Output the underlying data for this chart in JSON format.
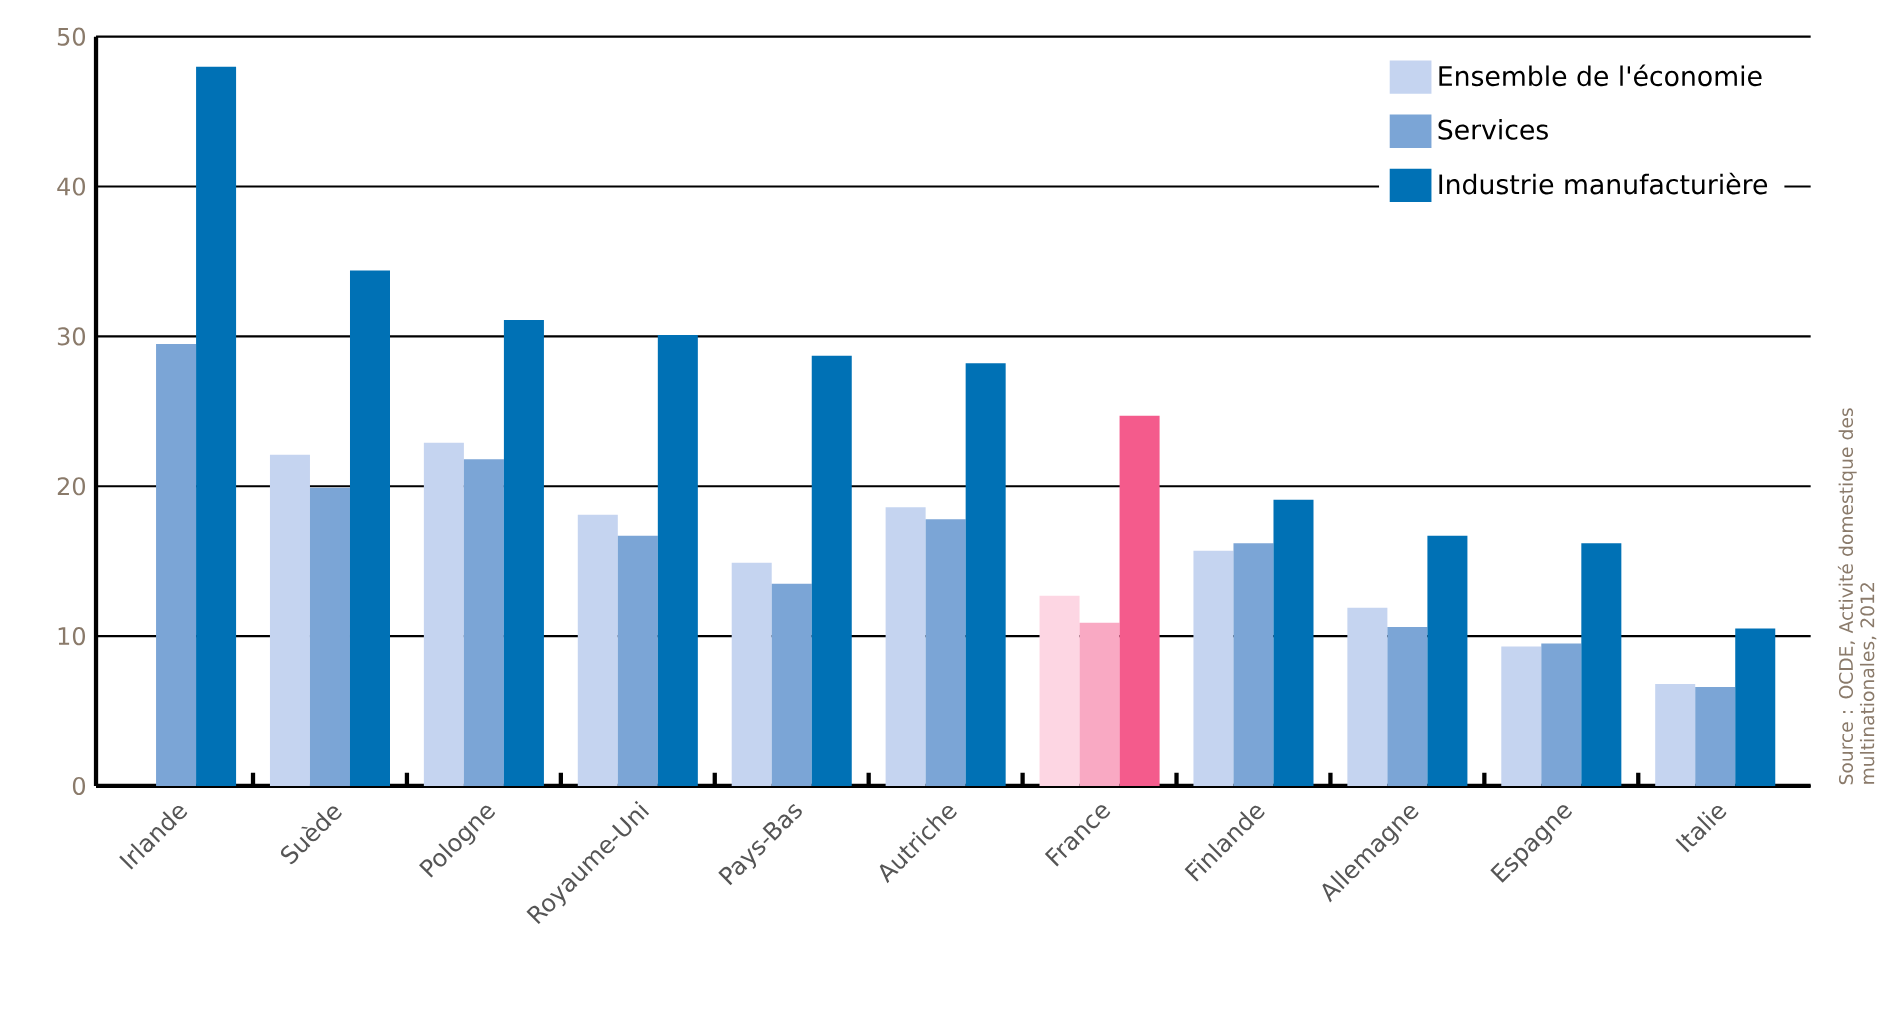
{
  "chart_data": {
    "type": "bar",
    "categories": [
      "Irlande",
      "Suède",
      "Pologne",
      "Royaume-Uni",
      "Pays-Bas",
      "Autriche",
      "France",
      "Finlande",
      "Allemagne",
      "Espagne",
      "Italie"
    ],
    "series": [
      {
        "name": "Ensemble de l'économie",
        "color": "#c5d4f0",
        "colors": [
          "#c5d4f0",
          "#c5d4f0",
          "#c5d4f0",
          "#c5d4f0",
          "#c5d4f0",
          "#c5d4f0",
          "#fdd6e3",
          "#c5d4f0",
          "#c5d4f0",
          "#c5d4f0",
          "#c5d4f0"
        ],
        "values": [
          null,
          22.1,
          22.9,
          18.1,
          14.9,
          18.6,
          12.7,
          15.7,
          11.9,
          9.3,
          6.8
        ]
      },
      {
        "name": "Services",
        "color": "#7ba5d6",
        "colors": [
          "#7ba5d6",
          "#7ba5d6",
          "#7ba5d6",
          "#7ba5d6",
          "#7ba5d6",
          "#7ba5d6",
          "#f9a9c3",
          "#7ba5d6",
          "#7ba5d6",
          "#7ba5d6",
          "#7ba5d6"
        ],
        "values": [
          29.5,
          19.9,
          21.8,
          16.7,
          13.5,
          17.8,
          10.9,
          16.2,
          10.6,
          9.5,
          6.6
        ]
      },
      {
        "name": "Industrie manufacturière",
        "color": "#0071b5",
        "colors": [
          "#0071b5",
          "#0071b5",
          "#0071b5",
          "#0071b5",
          "#0071b5",
          "#0071b5",
          "#f45b8c",
          "#0071b5",
          "#0071b5",
          "#0071b5",
          "#0071b5"
        ],
        "values": [
          48.0,
          34.4,
          31.1,
          30.1,
          28.7,
          28.2,
          24.7,
          19.1,
          16.7,
          16.2,
          10.5
        ]
      }
    ],
    "ylim": [
      0,
      50
    ],
    "yticks": [
      0,
      10,
      20,
      30,
      40,
      50
    ],
    "grid": "y",
    "legend": "top right",
    "annotations": [
      "Source : OCDE, Activité domestique des multinationales, 2012"
    ]
  }
}
